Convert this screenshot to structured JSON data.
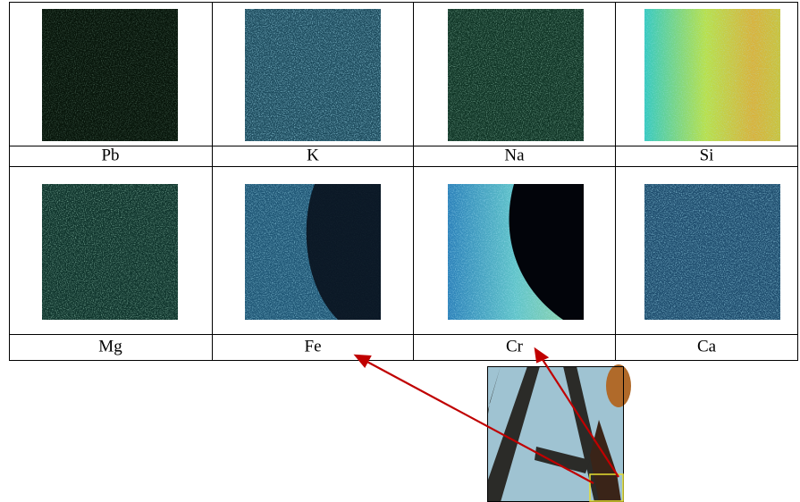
{
  "table": {
    "rows": [
      [
        "Pb",
        "K",
        "Na",
        "Si"
      ],
      [
        "Mg",
        "Fe",
        "Cr",
        "Ca"
      ]
    ]
  }
}
